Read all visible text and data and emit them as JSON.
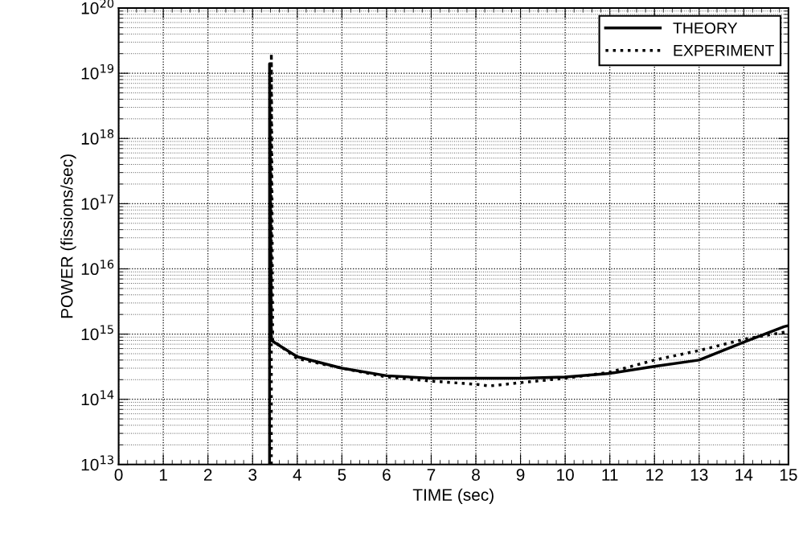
{
  "chart_data": {
    "type": "line",
    "xlabel": "TIME (sec)",
    "ylabel": "POWER (fissions/sec)",
    "log": "y",
    "xlim": [
      0,
      15
    ],
    "xticks": [
      0,
      1,
      2,
      3,
      4,
      5,
      6,
      7,
      8,
      9,
      10,
      11,
      12,
      13,
      14,
      15
    ],
    "ylim": [
      10000000000000.0,
      1e+20
    ],
    "yticks": [
      {
        "value": 10000000000000.0,
        "label": "10$^{13}$"
      },
      {
        "value": 100000000000000.0,
        "label": "10$^{14}$"
      },
      {
        "value": 1000000000000000.0,
        "label": "10$^{15}$"
      },
      {
        "value": 1e+16,
        "label": "10$^{16}$"
      },
      {
        "value": 1e+17,
        "label": "10$^{17}$"
      },
      {
        "value": 1e+18,
        "label": "10$^{18}$"
      },
      {
        "value": 1e+19,
        "label": "10$^{19}$"
      },
      {
        "value": 1e+20,
        "label": "10$^{20}$"
      }
    ],
    "grid": true,
    "legend": "top right",
    "marker": "none",
    "series": [
      {
        "name": "THEORY",
        "color": "#000000",
        "line_style": "solid",
        "x": [
          3.38,
          3.38,
          3.42,
          4,
          5,
          6,
          7,
          8,
          9,
          10,
          11,
          12,
          13,
          14,
          14.9,
          15
        ],
        "values": [
          10000000000000.0,
          1.4e+19,
          800000000000000.0,
          450000000000000.0,
          300000000000000.0,
          230000000000000.0,
          210000000000000.0,
          210000000000000.0,
          210000000000000.0,
          220000000000000.0,
          250000000000000.0,
          320000000000000.0,
          400000000000000.0,
          750000000000000.0,
          1300000000000000.0,
          1350000000000000.0
        ]
      },
      {
        "name": "EXPERIMENT",
        "color": "#000000",
        "line_style": "dotted",
        "x": [
          3.42,
          3.42,
          3.45,
          4,
          5,
          6,
          7,
          8,
          8.3,
          9,
          10,
          11,
          12,
          13,
          14,
          15
        ],
        "values": [
          10000000000000.0,
          2e+19,
          800000000000000.0,
          420000000000000.0,
          300000000000000.0,
          220000000000000.0,
          190000000000000.0,
          170000000000000.0,
          160000000000000.0,
          180000000000000.0,
          210000000000000.0,
          260000000000000.0,
          400000000000000.0,
          560000000000000.0,
          830000000000000.0,
          1100000000000000.0
        ]
      }
    ]
  }
}
